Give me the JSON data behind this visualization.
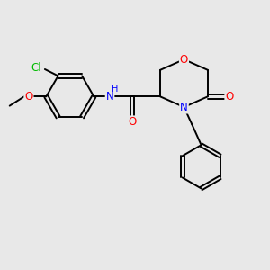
{
  "bg_color": "#e8e8e8",
  "bond_color": "#000000",
  "atom_colors": {
    "O": "#ff0000",
    "N": "#0000ff",
    "Cl": "#00bb00",
    "C": "#000000",
    "H": "#0000ff"
  },
  "figsize": [
    3.0,
    3.0
  ],
  "dpi": 100
}
